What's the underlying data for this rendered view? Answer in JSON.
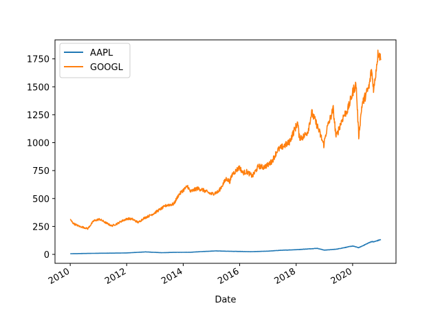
{
  "chart_data": {
    "type": "line",
    "title": "",
    "xlabel": "Date",
    "ylabel": "",
    "x_ticks": [
      "2010",
      "2012",
      "2014",
      "2016",
      "2018",
      "2020"
    ],
    "y_ticks": [
      "0",
      "250",
      "500",
      "750",
      "1000",
      "1250",
      "1500",
      "1750"
    ],
    "xlim": [
      "2009-06-18",
      "2021-07-15"
    ],
    "ylim": [
      -80,
      1920
    ],
    "grid": false,
    "legend_position": "upper-left",
    "colors": {
      "AAPL": "#1f77b4",
      "GOOGL": "#ff7f0e"
    },
    "series": [
      {
        "name": "AAPL",
        "x": [
          "2010-01-01",
          "2010-07-01",
          "2011-01-01",
          "2011-07-01",
          "2012-01-01",
          "2012-09-01",
          "2013-04-01",
          "2013-09-01",
          "2014-04-01",
          "2014-09-01",
          "2015-03-01",
          "2015-08-01",
          "2016-01-01",
          "2016-06-01",
          "2017-01-01",
          "2017-06-01",
          "2018-01-01",
          "2018-10-01",
          "2019-01-01",
          "2019-06-01",
          "2020-01-01",
          "2020-03-20",
          "2020-06-01",
          "2020-09-01",
          "2020-10-01",
          "2020-12-31"
        ],
        "y": [
          6,
          8,
          10,
          11,
          13,
          22,
          15,
          18,
          19,
          25,
          31,
          28,
          26,
          24,
          29,
          36,
          42,
          54,
          38,
          46,
          75,
          60,
          84,
          115,
          112,
          133
        ]
      },
      {
        "name": "GOOGL",
        "x": [
          "2010-01-01",
          "2010-02-15",
          "2010-05-01",
          "2010-07-01",
          "2010-08-15",
          "2010-11-01",
          "2011-01-15",
          "2011-04-15",
          "2011-06-20",
          "2011-09-01",
          "2011-11-01",
          "2012-01-15",
          "2012-03-15",
          "2012-06-01",
          "2012-08-01",
          "2012-10-01",
          "2012-12-01",
          "2013-03-01",
          "2013-06-01",
          "2013-09-01",
          "2013-11-01",
          "2014-01-01",
          "2014-03-01",
          "2014-04-01",
          "2014-07-01",
          "2014-09-01",
          "2014-11-01",
          "2015-01-01",
          "2015-04-01",
          "2015-07-15",
          "2015-08-25",
          "2015-10-01",
          "2015-12-31",
          "2016-02-10",
          "2016-04-01",
          "2016-06-15",
          "2016-09-01",
          "2016-11-01",
          "2017-01-01",
          "2017-03-01",
          "2017-05-01",
          "2017-07-01",
          "2017-10-01",
          "2018-01-20",
          "2018-02-10",
          "2018-04-01",
          "2018-06-01",
          "2018-07-20",
          "2018-09-01",
          "2018-10-01",
          "2018-12-24",
          "2019-02-01",
          "2019-04-25",
          "2019-06-01",
          "2019-07-20",
          "2019-09-01",
          "2019-11-01",
          "2020-01-15",
          "2020-02-15",
          "2020-03-20",
          "2020-05-01",
          "2020-06-15",
          "2020-08-01",
          "2020-09-01",
          "2020-10-01",
          "2020-11-15",
          "2020-12-01",
          "2020-12-31"
        ],
        "y": [
          310,
          275,
          250,
          240,
          230,
          300,
          315,
          280,
          255,
          275,
          300,
          320,
          315,
          285,
          320,
          340,
          360,
          400,
          440,
          450,
          530,
          575,
          610,
          560,
          590,
          580,
          560,
          540,
          560,
          680,
          650,
          720,
          780,
          730,
          740,
          700,
          790,
          780,
          800,
          840,
          930,
          960,
          1000,
          1180,
          1050,
          1050,
          1100,
          1270,
          1200,
          1150,
          980,
          1120,
          1300,
          1050,
          1150,
          1230,
          1300,
          1480,
          1520,
          1060,
          1340,
          1420,
          1500,
          1650,
          1470,
          1750,
          1820,
          1740
        ]
      }
    ]
  }
}
